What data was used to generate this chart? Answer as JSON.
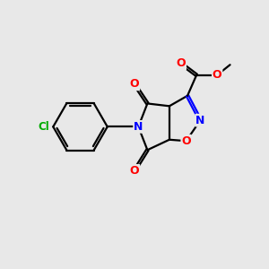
{
  "bg_color": "#e8e8e8",
  "atom_colors": {
    "C": "#000000",
    "N": "#0000ff",
    "O": "#ff0000",
    "Cl": "#00aa00"
  },
  "line_color": "#000000",
  "line_width": 1.6,
  "figsize": [
    3.0,
    3.0
  ],
  "dpi": 100,
  "xlim": [
    0,
    10
  ],
  "ylim": [
    0,
    10
  ]
}
